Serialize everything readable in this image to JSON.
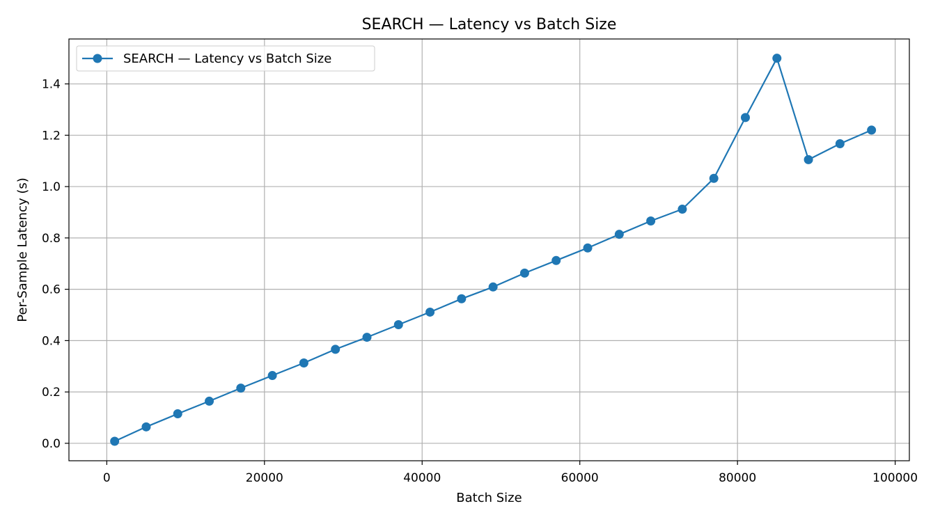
{
  "chart_data": {
    "type": "line",
    "title": "SEARCH —  Latency vs Batch Size",
    "xlabel": "Batch Size",
    "ylabel": "Per-Sample Latency (s)",
    "xlim": [
      -4800,
      101800
    ],
    "ylim": [
      -0.068,
      1.575
    ],
    "xticks": [
      0,
      20000,
      40000,
      60000,
      80000,
      100000
    ],
    "yticks": [
      0.0,
      0.2,
      0.4,
      0.6,
      0.8,
      1.0,
      1.2,
      1.4
    ],
    "ytick_labels": [
      "0.0",
      "0.2",
      "0.4",
      "0.6",
      "0.8",
      "1.0",
      "1.2",
      "1.4"
    ],
    "grid": true,
    "legend": {
      "placement": "top-left"
    },
    "color": "#1f77b4",
    "series": [
      {
        "name": "SEARCH —  Latency vs Batch Size",
        "x": [
          1000,
          5000,
          9000,
          13000,
          17000,
          21000,
          25000,
          29000,
          33000,
          37000,
          41000,
          45000,
          49000,
          53000,
          57000,
          61000,
          65000,
          69000,
          73000,
          77000,
          81000,
          85000,
          89000,
          93000,
          97000
        ],
        "y": [
          0.008,
          0.064,
          0.115,
          0.164,
          0.215,
          0.264,
          0.313,
          0.366,
          0.413,
          0.462,
          0.511,
          0.563,
          0.609,
          0.663,
          0.712,
          0.761,
          0.814,
          0.866,
          0.912,
          1.032,
          1.269,
          1.5,
          1.105,
          1.167,
          1.22
        ]
      }
    ]
  }
}
